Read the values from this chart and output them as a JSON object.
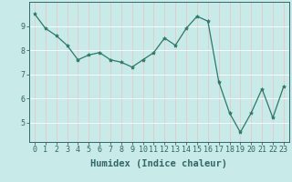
{
  "xlabel": "Humidex (Indice chaleur)",
  "x": [
    0,
    1,
    2,
    3,
    4,
    5,
    6,
    7,
    8,
    9,
    10,
    11,
    12,
    13,
    14,
    15,
    16,
    17,
    18,
    19,
    20,
    21,
    22,
    23
  ],
  "y": [
    9.5,
    8.9,
    8.6,
    8.2,
    7.6,
    7.8,
    7.9,
    7.6,
    7.5,
    7.3,
    7.6,
    7.9,
    8.5,
    8.2,
    8.9,
    9.4,
    9.2,
    6.7,
    5.4,
    4.6,
    5.4,
    6.4,
    5.2,
    6.5
  ],
  "line_color": "#2a7a6a",
  "marker": "*",
  "marker_size": 3,
  "bg_color": "#c8eae8",
  "grid_color": "#e8c8c8",
  "axis_color": "#336666",
  "ylim": [
    4.2,
    10.0
  ],
  "xlim": [
    -0.5,
    23.5
  ],
  "yticks": [
    5,
    6,
    7,
    8,
    9
  ],
  "xticks": [
    0,
    1,
    2,
    3,
    4,
    5,
    6,
    7,
    8,
    9,
    10,
    11,
    12,
    13,
    14,
    15,
    16,
    17,
    18,
    19,
    20,
    21,
    22,
    23
  ],
  "tick_label_fontsize": 6,
  "xlabel_fontsize": 7.5
}
